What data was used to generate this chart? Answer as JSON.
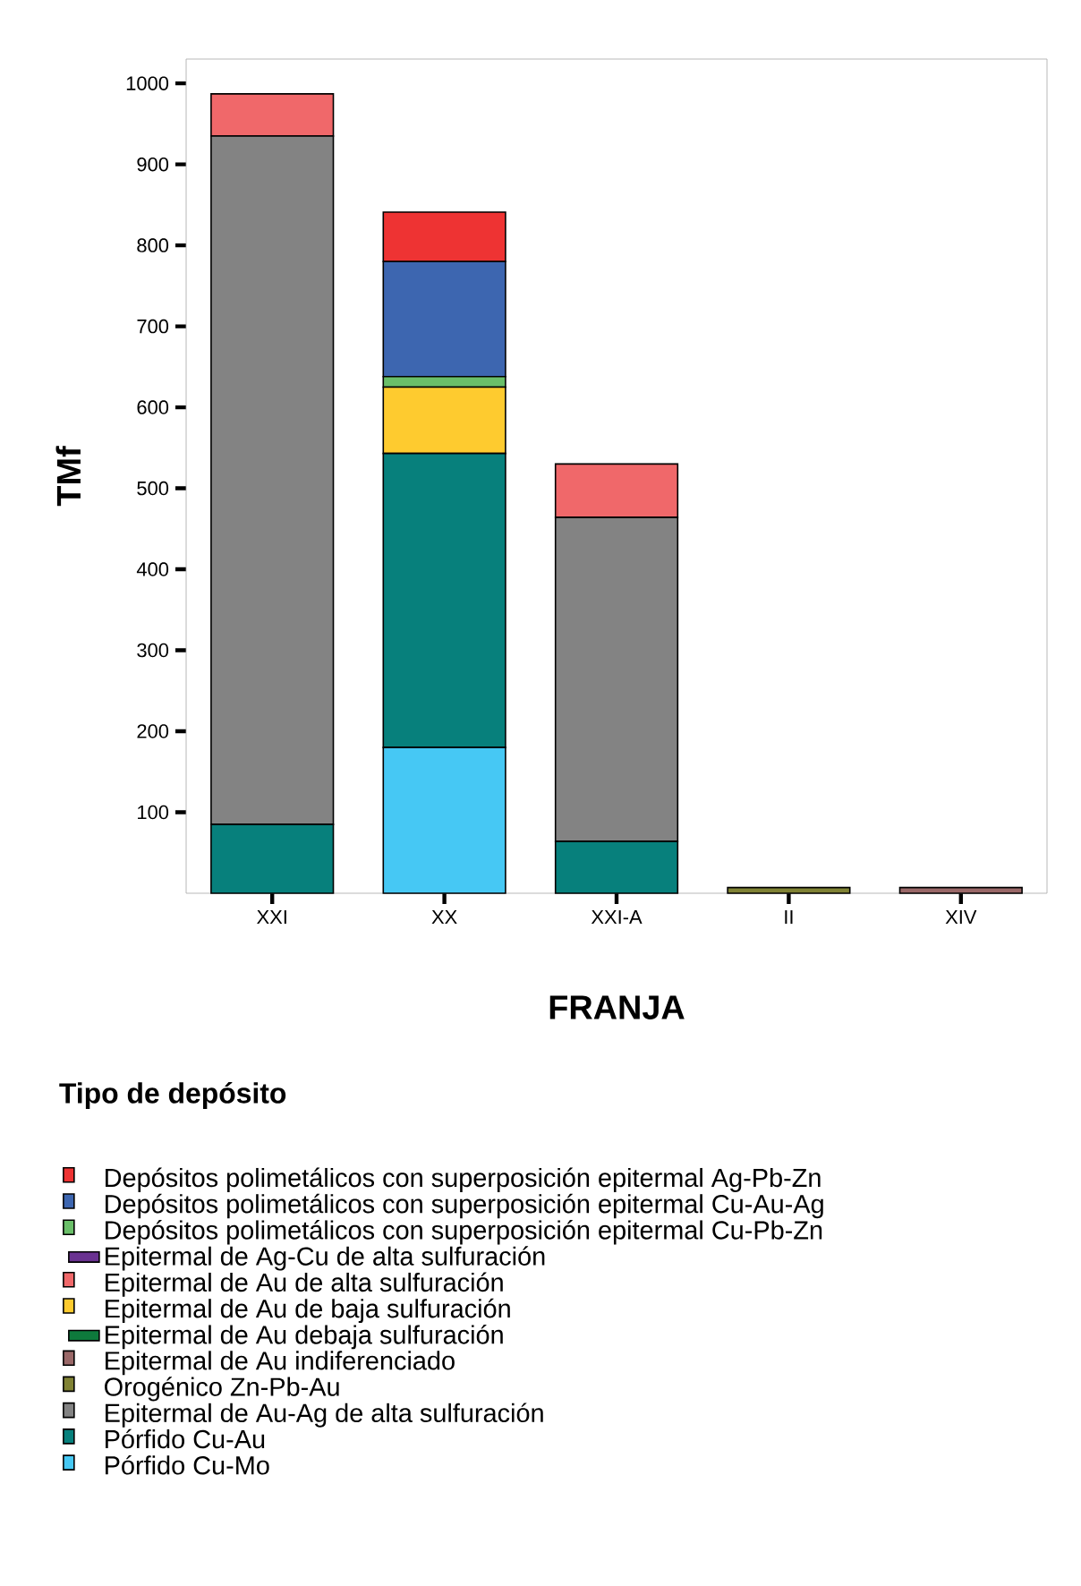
{
  "chart_data": {
    "type": "bar",
    "stacked": true,
    "xlabel": "FRANJA",
    "ylabel": "TMf",
    "legend_title": "Tipo de depósito",
    "legend": "bottom",
    "categories": [
      "XXI",
      "XX",
      "XXI-A",
      "II",
      "XIV"
    ],
    "ylim": [
      0,
      1030
    ],
    "yticks": [
      100,
      200,
      300,
      400,
      500,
      600,
      700,
      800,
      900,
      1000
    ],
    "series": [
      {
        "name": "Pórfido Cu-Mo",
        "color": "#46c8f4",
        "values": [
          null,
          180,
          null,
          null,
          null
        ]
      },
      {
        "name": "Pórfido Cu-Au",
        "color": "#07807c",
        "values": [
          85,
          363,
          64,
          null,
          null
        ]
      },
      {
        "name": "Epitermal de Au-Ag de alta sulfuración",
        "color": "#838383",
        "values": [
          850,
          null,
          400,
          null,
          null
        ]
      },
      {
        "name": "Orogénico Zn-Pb-Au",
        "color": "#808234",
        "values": [
          null,
          null,
          null,
          7,
          null
        ]
      },
      {
        "name": "Epitermal de Au indiferenciado",
        "color": "#9a6868",
        "values": [
          null,
          null,
          null,
          null,
          7
        ]
      },
      {
        "name": "Epitermal de Au debaja sulfuración",
        "color": "#0e7a3c",
        "values": [
          null,
          null,
          null,
          null,
          null
        ]
      },
      {
        "name": "Epitermal de Au de baja sulfuración",
        "color": "#fecb2f",
        "values": [
          null,
          82,
          null,
          null,
          null
        ]
      },
      {
        "name": "Epitermal de Au de alta sulfuración",
        "color": "#f0686a",
        "values": [
          52,
          null,
          66,
          null,
          null
        ]
      },
      {
        "name": "Epitermal de Ag-Cu de alta sulfuración",
        "color": "#6a3291",
        "values": [
          null,
          null,
          null,
          null,
          null
        ]
      },
      {
        "name": "Depósitos polimetálicos con superposición epitermal Cu-Pb-Zn",
        "color": "#6abf69",
        "values": [
          null,
          13,
          null,
          null,
          null
        ]
      },
      {
        "name": "Depósitos polimetálicos con superposición epitermal Cu-Au-Ag",
        "color": "#3d66b0",
        "values": [
          null,
          142,
          null,
          null,
          null
        ]
      },
      {
        "name": "Depósitos polimetálicos con superposición epitermal Ag-Pb-Zn",
        "color": "#ee3333",
        "values": [
          null,
          61,
          null,
          null,
          null
        ]
      }
    ]
  }
}
